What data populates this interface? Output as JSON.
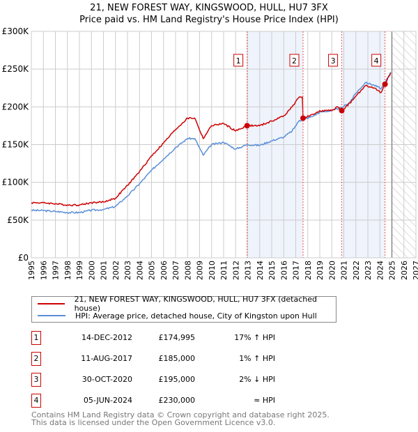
{
  "chart_data": {
    "type": "line",
    "title": "21, NEW FOREST WAY, KINGSWOOD, HULL, HU7 3FX",
    "subtitle": "Price paid vs. HM Land Registry's House Price Index (HPI)",
    "xlim": [
      1995,
      2027
    ],
    "ylim": [
      0,
      300000
    ],
    "x_ticks": [
      "1995",
      "1996",
      "1997",
      "1998",
      "1999",
      "2000",
      "2001",
      "2002",
      "2003",
      "2004",
      "2005",
      "2006",
      "2007",
      "2008",
      "2009",
      "2010",
      "2011",
      "2012",
      "2013",
      "2014",
      "2015",
      "2016",
      "2017",
      "2018",
      "2019",
      "2020",
      "2021",
      "2022",
      "2023",
      "2024",
      "2025",
      "2026",
      "2027"
    ],
    "y_ticks": [
      {
        "v": 0,
        "label": "£0"
      },
      {
        "v": 50000,
        "label": "£50K"
      },
      {
        "v": 100000,
        "label": "£100K"
      },
      {
        "v": 150000,
        "label": "£150K"
      },
      {
        "v": 200000,
        "label": "£200K"
      },
      {
        "v": 250000,
        "label": "£250K"
      },
      {
        "v": 300000,
        "label": "£300K"
      }
    ],
    "series": [
      {
        "name": "21, NEW FOREST WAY, KINGSWOOD, HULL, HU7 3FX (detached house)",
        "color": "#cc0000",
        "points": [
          [
            1995,
            73
          ],
          [
            1996,
            73
          ],
          [
            1997,
            71.5
          ],
          [
            1998,
            70
          ],
          [
            1999,
            70
          ],
          [
            2000,
            73
          ],
          [
            2001,
            74
          ],
          [
            2002,
            79
          ],
          [
            2003,
            96
          ],
          [
            2004,
            114
          ],
          [
            2005,
            135
          ],
          [
            2006,
            152
          ],
          [
            2007,
            170
          ],
          [
            2008,
            185
          ],
          [
            2008.6,
            185
          ],
          [
            2009.3,
            158
          ],
          [
            2010,
            175
          ],
          [
            2011,
            178
          ],
          [
            2012,
            168
          ],
          [
            2012.95,
            175
          ],
          [
            2014,
            175
          ],
          [
            2015,
            181
          ],
          [
            2016,
            188
          ],
          [
            2016.7,
            200
          ],
          [
            2017.3,
            213
          ],
          [
            2017.55,
            213
          ],
          [
            2017.61,
            185
          ],
          [
            2018.5,
            190
          ],
          [
            2019,
            195
          ],
          [
            2020,
            195
          ],
          [
            2020.5,
            200
          ],
          [
            2020.83,
            195
          ],
          [
            2021.5,
            205
          ],
          [
            2022,
            214
          ],
          [
            2022.8,
            228
          ],
          [
            2023.5,
            225
          ],
          [
            2024.1,
            219
          ],
          [
            2024.43,
            230
          ],
          [
            2024.9,
            245
          ]
        ]
      },
      {
        "name": "HPI: Average price, detached house, City of Kingston upon Hull",
        "color": "#5b8fd6",
        "points": [
          [
            1995,
            63
          ],
          [
            1996,
            62.5
          ],
          [
            1997,
            61.5
          ],
          [
            1998,
            60
          ],
          [
            1999,
            60
          ],
          [
            2000,
            63
          ],
          [
            2001,
            64
          ],
          [
            2002,
            68
          ],
          [
            2003,
            82
          ],
          [
            2004,
            98
          ],
          [
            2005,
            116
          ],
          [
            2006,
            131
          ],
          [
            2007,
            146
          ],
          [
            2008,
            158
          ],
          [
            2008.6,
            158
          ],
          [
            2009.3,
            136
          ],
          [
            2010,
            150
          ],
          [
            2011,
            153
          ],
          [
            2012,
            144
          ],
          [
            2012.95,
            150
          ],
          [
            2014,
            149
          ],
          [
            2015,
            155
          ],
          [
            2016,
            160
          ],
          [
            2016.7,
            168
          ],
          [
            2017.3,
            182
          ],
          [
            2017.61,
            183
          ],
          [
            2018.5,
            188
          ],
          [
            2019,
            193
          ],
          [
            2020,
            195
          ],
          [
            2020.83,
            199
          ],
          [
            2021.5,
            206
          ],
          [
            2022,
            218
          ],
          [
            2022.8,
            232
          ],
          [
            2023.5,
            229
          ],
          [
            2024.1,
            224
          ],
          [
            2024.43,
            232
          ],
          [
            2024.9,
            246
          ]
        ]
      }
    ],
    "sales": [
      {
        "label": "1",
        "x": 2012.95,
        "price": 174995,
        "date": "14-DEC-2012",
        "price_text": "£174,995",
        "hpi": "17% ↑ HPI"
      },
      {
        "label": "2",
        "x": 2017.61,
        "price": 185000,
        "date": "11-AUG-2017",
        "price_text": "£185,000",
        "hpi": "1% ↑ HPI"
      },
      {
        "label": "3",
        "x": 2020.83,
        "price": 195000,
        "date": "30-OCT-2020",
        "price_text": "£195,000",
        "hpi": "2% ↓ HPI"
      },
      {
        "label": "4",
        "x": 2024.43,
        "price": 230000,
        "date": "05-JUN-2024",
        "price_text": "£230,000",
        "hpi": "≈ HPI"
      }
    ],
    "forecast_start": 2025
  },
  "footer": {
    "line1": "Contains HM Land Registry data © Crown copyright and database right 2025.",
    "line2": "This data is licensed under the Open Government Licence v3.0."
  }
}
